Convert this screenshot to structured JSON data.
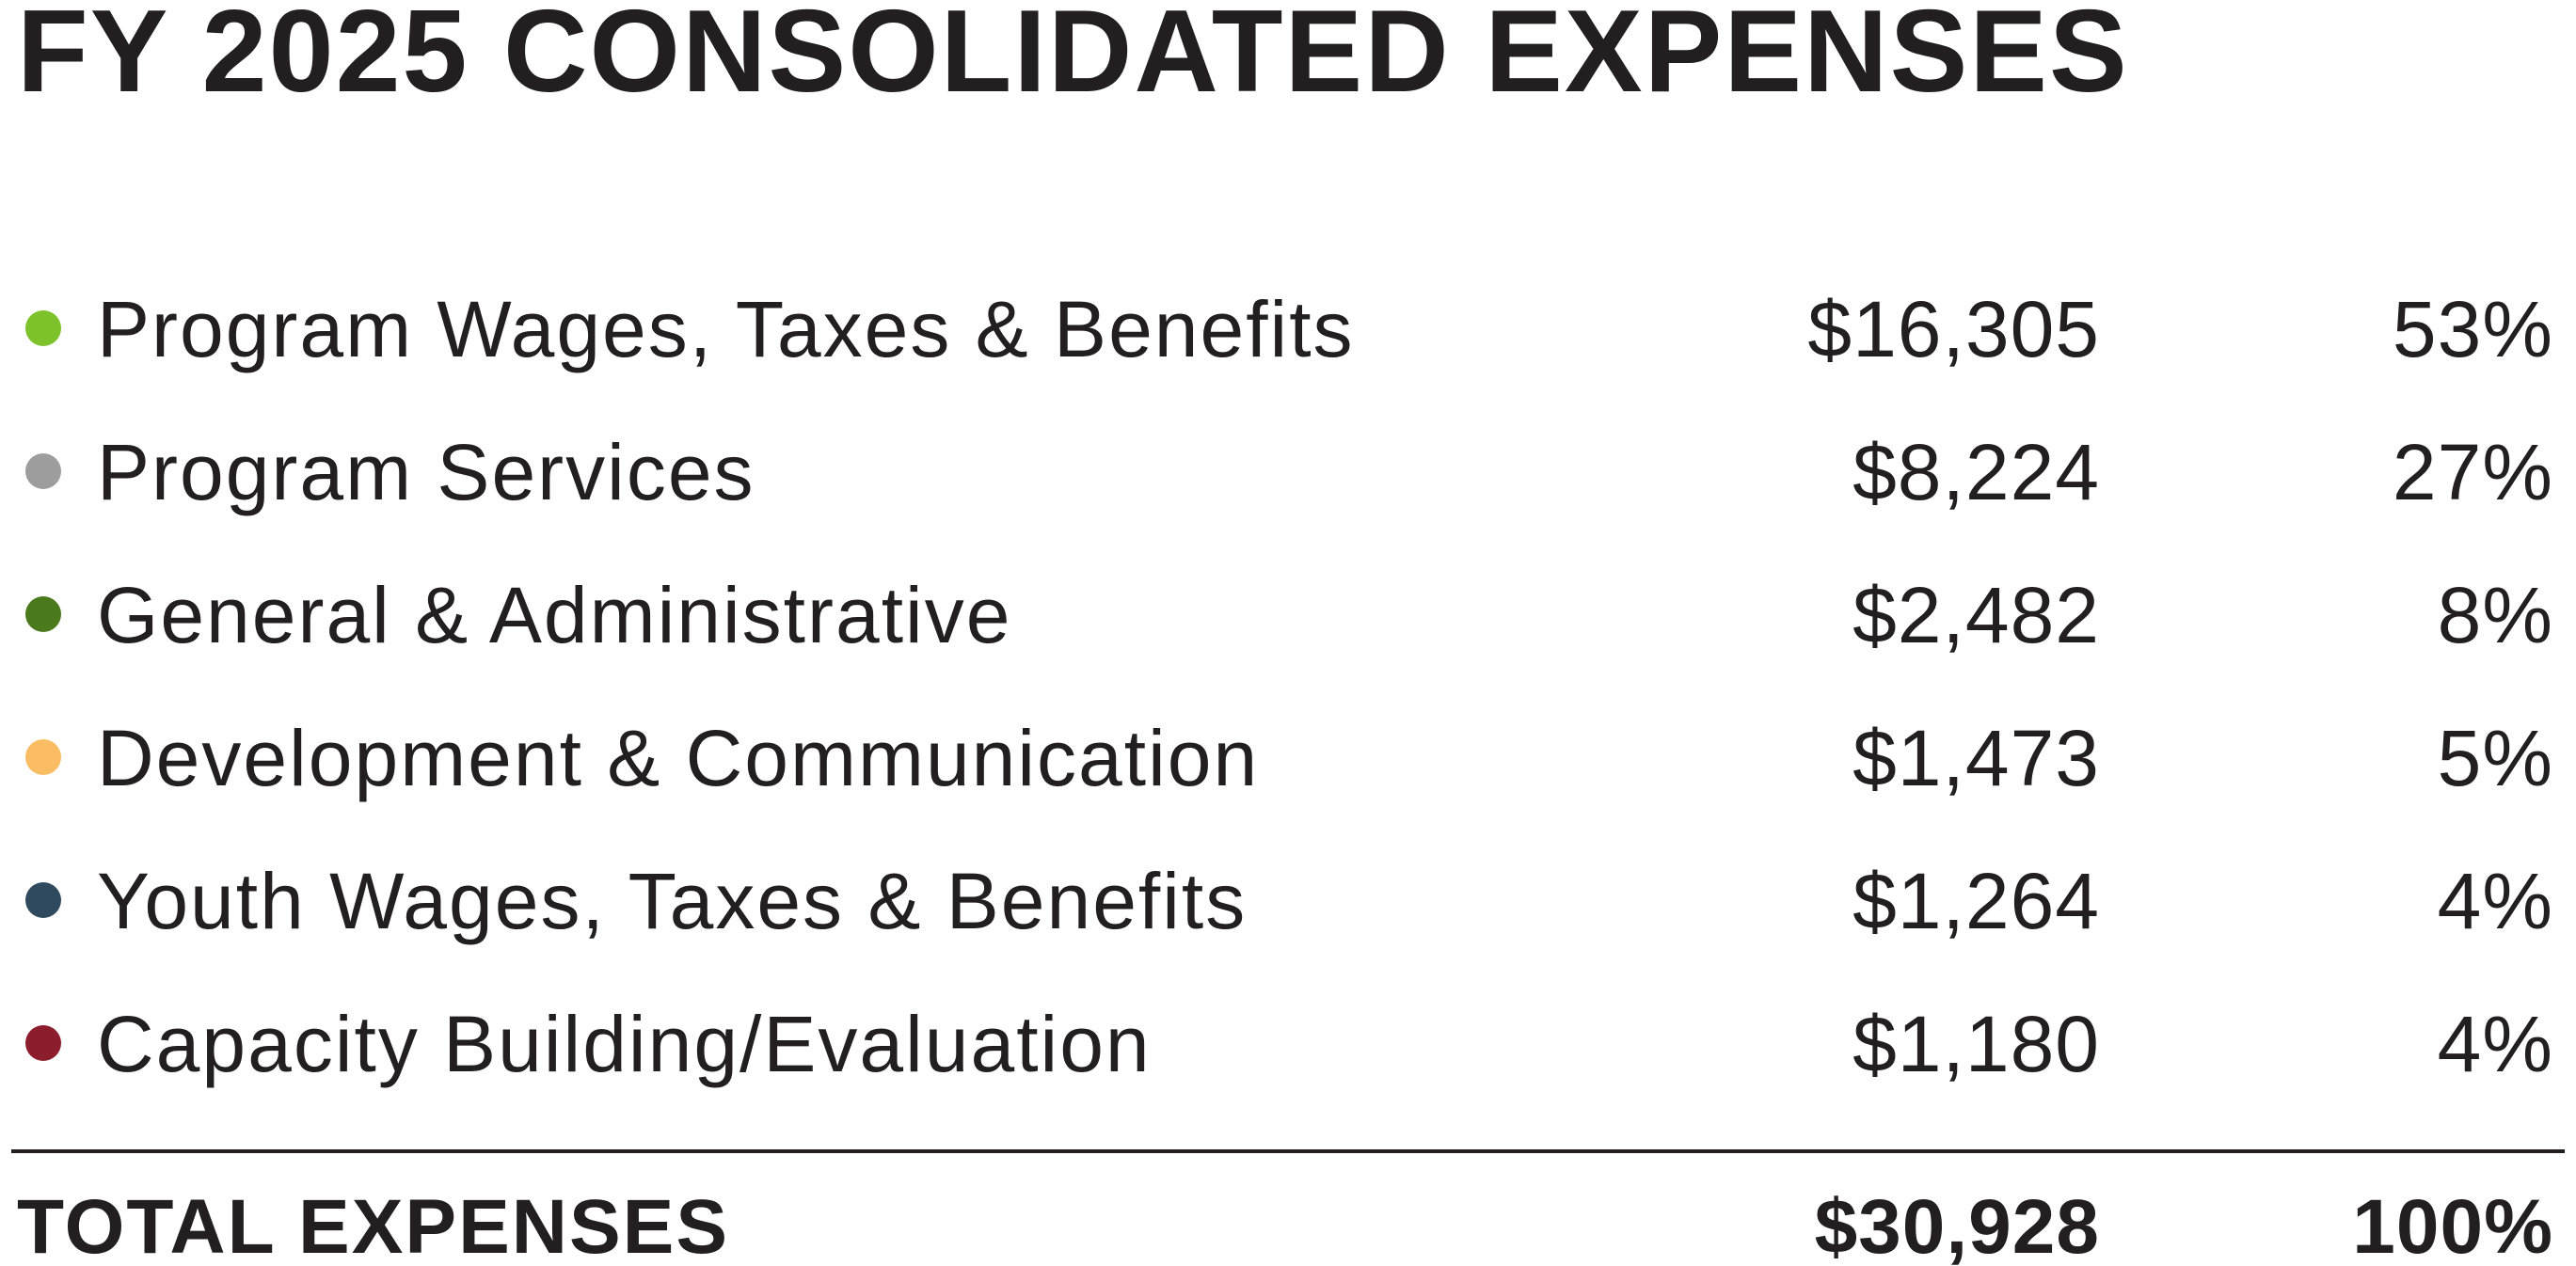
{
  "title": "FY 2025 CONSOLIDATED EXPENSES",
  "rows": [
    {
      "label": "Program Wages, Taxes & Benefits",
      "amount": "$16,305",
      "percent": "53%",
      "color": "#7dc22b"
    },
    {
      "label": "Program Services",
      "amount": "$8,224",
      "percent": "27%",
      "color": "#9d9d9e"
    },
    {
      "label": "General & Administrative",
      "amount": "$2,482",
      "percent": "8%",
      "color": "#4a7a1c"
    },
    {
      "label": "Development & Communication",
      "amount": "$1,473",
      "percent": "5%",
      "color": "#fbbd63"
    },
    {
      "label": "Youth Wages, Taxes & Benefits",
      "amount": "$1,264",
      "percent": "4%",
      "color": "#2f4a5f"
    },
    {
      "label": "Capacity Building/Evaluation",
      "amount": "$1,180",
      "percent": "4%",
      "color": "#8b1d2c"
    }
  ],
  "total": {
    "label": "TOTAL EXPENSES",
    "amount": "$30,928",
    "percent": "100%"
  }
}
